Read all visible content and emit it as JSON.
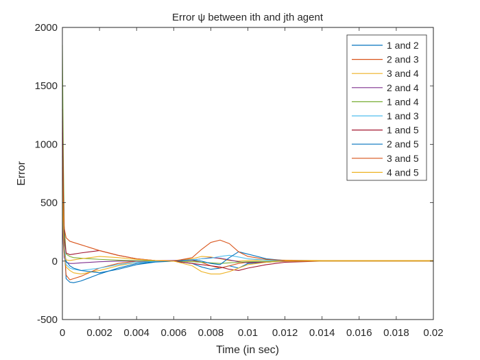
{
  "chart_data": {
    "type": "line",
    "title": "Error ψ between ith and jth agent",
    "xlabel": "Time (in sec)",
    "ylabel": "Error",
    "xlim": [
      0,
      0.02
    ],
    "ylim": [
      -500,
      2000
    ],
    "xticks": [
      0,
      0.002,
      0.004,
      0.006,
      0.008,
      0.01,
      0.012,
      0.014,
      0.016,
      0.018,
      0.02
    ],
    "xtick_labels": [
      "0",
      "0.002",
      "0.004",
      "0.006",
      "0.008",
      "0.01",
      "0.012",
      "0.014",
      "0.016",
      "0.018",
      "0.02"
    ],
    "yticks": [
      -500,
      0,
      500,
      1000,
      1500,
      2000
    ],
    "ytick_labels": [
      "-500",
      "0",
      "500",
      "1000",
      "1500",
      "2000"
    ],
    "grid": false,
    "legend_position": "top-right",
    "series": [
      {
        "name": "1 and 2",
        "color": "#0072BD",
        "x": [
          0,
          5e-05,
          0.0001,
          0.0002,
          0.0004,
          0.0006,
          0.001,
          0.002,
          0.003,
          0.004,
          0.005,
          0.006,
          0.007,
          0.0075,
          0.008,
          0.0085,
          0.009,
          0.0095,
          0.01,
          0.011,
          0.012,
          0.014,
          0.016,
          0.018,
          0.02
        ],
        "y": [
          1200,
          500,
          150,
          -150,
          -180,
          -185,
          -170,
          -110,
          -60,
          -20,
          -5,
          0,
          -20,
          -50,
          -70,
          -60,
          -40,
          -60,
          -20,
          -10,
          0,
          2,
          0,
          0,
          0
        ]
      },
      {
        "name": "2 and 3",
        "color": "#D95319",
        "x": [
          0,
          5e-05,
          0.0001,
          0.0002,
          0.0004,
          0.0006,
          0.001,
          0.002,
          0.003,
          0.004,
          0.005,
          0.006,
          0.007,
          0.0075,
          0.008,
          0.0085,
          0.009,
          0.0095,
          0.01,
          0.011,
          0.012,
          0.014,
          0.016,
          0.018,
          0.02
        ],
        "y": [
          1100,
          400,
          100,
          -120,
          -160,
          -150,
          -130,
          -60,
          -20,
          0,
          5,
          5,
          5,
          -10,
          -40,
          -60,
          -40,
          -20,
          -10,
          -5,
          0,
          2,
          2,
          2,
          2
        ]
      },
      {
        "name": "3 and 4",
        "color": "#EDB120",
        "x": [
          0,
          5e-05,
          0.0001,
          0.0002,
          0.0004,
          0.0006,
          0.001,
          0.002,
          0.003,
          0.004,
          0.005,
          0.006,
          0.007,
          0.0075,
          0.008,
          0.0085,
          0.009,
          0.0095,
          0.01,
          0.011,
          0.012,
          0.014,
          0.016,
          0.018,
          0.02
        ],
        "y": [
          600,
          200,
          50,
          -50,
          -80,
          -100,
          -110,
          -80,
          -40,
          -10,
          0,
          5,
          20,
          40,
          35,
          20,
          5,
          0,
          5,
          10,
          8,
          5,
          5,
          5,
          5
        ]
      },
      {
        "name": "2 and 4",
        "color": "#7E2F8E",
        "x": [
          0,
          5e-05,
          0.0001,
          0.0002,
          0.0004,
          0.0006,
          0.001,
          0.002,
          0.003,
          0.004,
          0.005,
          0.006,
          0.007,
          0.0075,
          0.008,
          0.0085,
          0.009,
          0.0095,
          0.01,
          0.011,
          0.012,
          0.014,
          0.016,
          0.018,
          0.02
        ],
        "y": [
          400,
          150,
          30,
          -10,
          -20,
          -20,
          -15,
          -5,
          0,
          0,
          0,
          5,
          10,
          20,
          30,
          25,
          10,
          -5,
          -15,
          -8,
          -3,
          0,
          0,
          0,
          0
        ]
      },
      {
        "name": "1 and 4",
        "color": "#77AC30",
        "x": [
          0,
          5e-05,
          0.0001,
          0.0002,
          0.0004,
          0.0006,
          0.001,
          0.002,
          0.003,
          0.004,
          0.005,
          0.006,
          0.007,
          0.0075,
          0.008,
          0.0085,
          0.009,
          0.0095,
          0.01,
          0.011,
          0.012,
          0.014,
          0.016,
          0.018,
          0.02
        ],
        "y": [
          1850,
          900,
          300,
          60,
          40,
          30,
          25,
          15,
          8,
          4,
          2,
          0,
          -5,
          -10,
          -15,
          -20,
          -15,
          -10,
          -5,
          -2,
          0,
          0,
          0,
          0,
          0
        ]
      },
      {
        "name": "1 and 3",
        "color": "#4DBEEE",
        "x": [
          0,
          5e-05,
          0.0001,
          0.0002,
          0.0004,
          0.0006,
          0.001,
          0.002,
          0.003,
          0.004,
          0.005,
          0.006,
          0.007,
          0.0075,
          0.008,
          0.0085,
          0.009,
          0.0095,
          0.01,
          0.011,
          0.012,
          0.014,
          0.016,
          0.018,
          0.02
        ],
        "y": [
          800,
          300,
          80,
          -30,
          -60,
          -70,
          -80,
          -60,
          -30,
          -10,
          -2,
          0,
          10,
          20,
          25,
          40,
          50,
          35,
          20,
          8,
          3,
          0,
          0,
          0,
          0
        ]
      },
      {
        "name": "1 and 5",
        "color": "#A2142F",
        "x": [
          0,
          5e-05,
          0.0001,
          0.0002,
          0.0004,
          0.0006,
          0.001,
          0.002,
          0.003,
          0.004,
          0.005,
          0.006,
          0.007,
          0.0075,
          0.008,
          0.0085,
          0.009,
          0.0095,
          0.01,
          0.011,
          0.012,
          0.014,
          0.016,
          0.018,
          0.02
        ],
        "y": [
          1300,
          600,
          200,
          70,
          55,
          60,
          70,
          90,
          50,
          20,
          5,
          0,
          -20,
          -30,
          -40,
          -50,
          -70,
          -80,
          -60,
          -30,
          -10,
          0,
          0,
          0,
          0
        ]
      },
      {
        "name": "2 and 5",
        "color": "#0072BD",
        "x": [
          0,
          5e-05,
          0.0001,
          0.0002,
          0.0004,
          0.0006,
          0.001,
          0.002,
          0.003,
          0.004,
          0.005,
          0.006,
          0.007,
          0.0075,
          0.008,
          0.0085,
          0.009,
          0.0095,
          0.01,
          0.011,
          0.012,
          0.014,
          0.016,
          0.018,
          0.02
        ],
        "y": [
          900,
          350,
          100,
          0,
          -40,
          -60,
          -80,
          -100,
          -70,
          -30,
          -8,
          0,
          10,
          0,
          -20,
          -30,
          30,
          80,
          60,
          20,
          5,
          0,
          0,
          0,
          0
        ]
      },
      {
        "name": "3 and 5",
        "color": "#D95319",
        "x": [
          0,
          5e-05,
          0.0001,
          0.0002,
          0.0004,
          0.0006,
          0.001,
          0.002,
          0.003,
          0.004,
          0.005,
          0.006,
          0.007,
          0.0075,
          0.008,
          0.0085,
          0.009,
          0.0095,
          0.01,
          0.011,
          0.012,
          0.014,
          0.016,
          0.018,
          0.02
        ],
        "y": [
          1000,
          450,
          280,
          200,
          170,
          160,
          140,
          90,
          50,
          20,
          5,
          0,
          30,
          100,
          160,
          180,
          150,
          80,
          40,
          15,
          5,
          0,
          0,
          0,
          0
        ]
      },
      {
        "name": "4 and 5",
        "color": "#EDB120",
        "x": [
          0,
          5e-05,
          0.0001,
          0.0002,
          0.0004,
          0.0006,
          0.001,
          0.002,
          0.003,
          0.004,
          0.005,
          0.006,
          0.007,
          0.0075,
          0.008,
          0.0085,
          0.009,
          0.0095,
          0.01,
          0.011,
          0.012,
          0.014,
          0.016,
          0.018,
          0.02
        ],
        "y": [
          700,
          250,
          60,
          10,
          5,
          10,
          20,
          40,
          30,
          15,
          5,
          0,
          -40,
          -90,
          -110,
          -110,
          -90,
          -60,
          -30,
          -10,
          0,
          0,
          0,
          0,
          0
        ]
      }
    ]
  }
}
